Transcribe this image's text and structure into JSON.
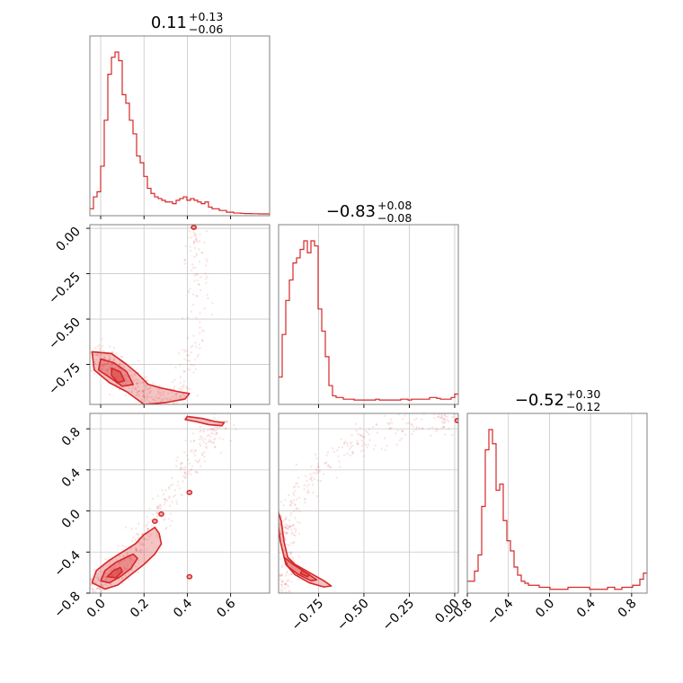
{
  "chart_data": {
    "type": "corner",
    "color": "#d62728",
    "grid": true,
    "titles": [
      {
        "value": "0.11",
        "plus": "+0.13",
        "minus": "−0.06"
      },
      {
        "value": "−0.83",
        "plus": "+0.08",
        "minus": "−0.08"
      },
      {
        "value": "−0.52",
        "plus": "+0.30",
        "minus": "−0.12"
      }
    ],
    "parameters": [
      {
        "range": [
          -0.05,
          0.78
        ],
        "ticks": [
          0.0,
          0.2,
          0.4,
          0.6
        ],
        "tick_labels": [
          "0.0",
          "0.2",
          "0.4",
          "0.6"
        ]
      },
      {
        "range": [
          -0.97,
          0.02
        ],
        "ticks": [
          -0.75,
          -0.5,
          -0.25,
          0.0
        ],
        "tick_labels": [
          "−0.75",
          "−0.50",
          "−0.25",
          "0.00"
        ]
      },
      {
        "range": [
          -0.8,
          0.95
        ],
        "ticks": [
          -0.8,
          -0.4,
          0.0,
          0.4,
          0.8
        ],
        "tick_labels": [
          "−0.8",
          "−0.4",
          "0.0",
          "0.4",
          "0.8"
        ]
      }
    ],
    "histograms": [
      {
        "bin_start": -0.05,
        "bin_width": 0.0166,
        "counts": [
          0.03,
          0.1,
          0.13,
          0.28,
          0.55,
          0.82,
          0.92,
          0.95,
          0.9,
          0.7,
          0.65,
          0.55,
          0.47,
          0.34,
          0.3,
          0.22,
          0.15,
          0.12,
          0.1,
          0.09,
          0.08,
          0.07,
          0.07,
          0.06,
          0.08,
          0.09,
          0.1,
          0.08,
          0.09,
          0.08,
          0.07,
          0.06,
          0.07,
          0.04,
          0.03,
          0.03,
          0.02,
          0.02,
          0.01,
          0.01,
          0.005,
          0.005,
          0.003,
          0.002,
          0.002,
          0.001,
          0.001,
          0.0,
          0.0,
          0.0
        ]
      },
      {
        "bin_start": -0.97,
        "bin_width": 0.0198,
        "counts": [
          0.15,
          0.4,
          0.6,
          0.72,
          0.82,
          0.85,
          0.9,
          0.95,
          0.88,
          0.95,
          0.92,
          0.55,
          0.42,
          0.27,
          0.1,
          0.04,
          0.03,
          0.03,
          0.02,
          0.02,
          0.02,
          0.015,
          0.015,
          0.015,
          0.015,
          0.015,
          0.015,
          0.02,
          0.015,
          0.015,
          0.015,
          0.015,
          0.015,
          0.015,
          0.02,
          0.02,
          0.015,
          0.02,
          0.02,
          0.02,
          0.02,
          0.02,
          0.03,
          0.03,
          0.025,
          0.02,
          0.02,
          0.02,
          0.03,
          0.05
        ]
      },
      {
        "bin_start": -0.8,
        "bin_width": 0.035,
        "counts": [
          0.05,
          0.05,
          0.1,
          0.18,
          0.42,
          0.7,
          0.8,
          0.73,
          0.5,
          0.53,
          0.35,
          0.25,
          0.2,
          0.12,
          0.08,
          0.05,
          0.04,
          0.03,
          0.03,
          0.03,
          0.02,
          0.02,
          0.02,
          0.01,
          0.01,
          0.01,
          0.01,
          0.01,
          0.02,
          0.02,
          0.02,
          0.02,
          0.02,
          0.02,
          0.01,
          0.01,
          0.01,
          0.01,
          0.01,
          0.02,
          0.02,
          0.01,
          0.01,
          0.02,
          0.02,
          0.02,
          0.03,
          0.03,
          0.06,
          0.09
        ]
      }
    ],
    "pairs": [
      {
        "x_param": 0,
        "y_param": 1,
        "scatter_trend": [
          [
            -0.02,
            -0.7
          ],
          [
            0.05,
            -0.74
          ],
          [
            0.12,
            -0.83
          ],
          [
            0.18,
            -0.88
          ],
          [
            0.25,
            -0.93
          ],
          [
            0.32,
            -0.94
          ],
          [
            0.38,
            -0.9
          ],
          [
            0.42,
            -0.7
          ],
          [
            0.45,
            -0.4
          ],
          [
            0.45,
            -0.15
          ],
          [
            0.43,
            0.0
          ]
        ],
        "outer_contour": [
          [
            -0.04,
            -0.68
          ],
          [
            0.05,
            -0.69
          ],
          [
            0.12,
            -0.75
          ],
          [
            0.17,
            -0.8
          ],
          [
            0.22,
            -0.86
          ],
          [
            0.28,
            -0.88
          ],
          [
            0.36,
            -0.9
          ],
          [
            0.41,
            -0.91
          ],
          [
            0.39,
            -0.94
          ],
          [
            0.3,
            -0.96
          ],
          [
            0.2,
            -0.97
          ],
          [
            0.12,
            -0.9
          ],
          [
            0.04,
            -0.85
          ],
          [
            -0.03,
            -0.78
          ]
        ],
        "mid_contour": [
          [
            0.0,
            -0.72
          ],
          [
            0.06,
            -0.74
          ],
          [
            0.12,
            -0.79
          ],
          [
            0.15,
            -0.86
          ],
          [
            0.1,
            -0.87
          ],
          [
            0.04,
            -0.82
          ],
          [
            -0.01,
            -0.78
          ]
        ],
        "inner_contour": [
          [
            0.05,
            -0.77
          ],
          [
            0.09,
            -0.79
          ],
          [
            0.11,
            -0.84
          ],
          [
            0.08,
            -0.85
          ],
          [
            0.05,
            -0.81
          ]
        ],
        "islands": [
          [
            0.43,
            0.005
          ]
        ]
      },
      {
        "x_param": 0,
        "y_param": 2,
        "scatter_trend": [
          [
            -0.03,
            -0.75
          ],
          [
            0.05,
            -0.62
          ],
          [
            0.12,
            -0.45
          ],
          [
            0.18,
            -0.3
          ],
          [
            0.25,
            -0.1
          ],
          [
            0.32,
            0.15
          ],
          [
            0.38,
            0.35
          ],
          [
            0.43,
            0.55
          ],
          [
            0.5,
            0.75
          ],
          [
            0.58,
            0.88
          ]
        ],
        "outer_contour": [
          [
            -0.04,
            -0.7
          ],
          [
            -0.02,
            -0.58
          ],
          [
            0.04,
            -0.48
          ],
          [
            0.1,
            -0.4
          ],
          [
            0.16,
            -0.32
          ],
          [
            0.2,
            -0.23
          ],
          [
            0.25,
            -0.16
          ],
          [
            0.27,
            -0.22
          ],
          [
            0.28,
            -0.32
          ],
          [
            0.25,
            -0.42
          ],
          [
            0.2,
            -0.52
          ],
          [
            0.14,
            -0.62
          ],
          [
            0.08,
            -0.72
          ],
          [
            0.02,
            -0.76
          ]
        ],
        "mid_contour": [
          [
            0.0,
            -0.68
          ],
          [
            0.02,
            -0.58
          ],
          [
            0.07,
            -0.5
          ],
          [
            0.12,
            -0.45
          ],
          [
            0.15,
            -0.42
          ],
          [
            0.17,
            -0.46
          ],
          [
            0.14,
            -0.56
          ],
          [
            0.09,
            -0.64
          ],
          [
            0.04,
            -0.7
          ]
        ],
        "inner_contour": [
          [
            0.03,
            -0.64
          ],
          [
            0.06,
            -0.58
          ],
          [
            0.09,
            -0.55
          ],
          [
            0.1,
            -0.59
          ],
          [
            0.07,
            -0.65
          ]
        ],
        "islands": [
          [
            0.41,
            -0.64
          ],
          [
            0.41,
            0.18
          ],
          [
            0.25,
            -0.1
          ],
          [
            0.28,
            -0.03
          ]
        ],
        "top_contour": [
          [
            0.4,
            0.92
          ],
          [
            0.47,
            0.9
          ],
          [
            0.53,
            0.87
          ],
          [
            0.57,
            0.86
          ],
          [
            0.56,
            0.83
          ],
          [
            0.5,
            0.84
          ],
          [
            0.44,
            0.87
          ],
          [
            0.39,
            0.89
          ]
        ]
      },
      {
        "x_param": 1,
        "y_param": 2,
        "scatter_trend": [
          [
            -0.96,
            -0.8
          ],
          [
            -0.95,
            -0.3
          ],
          [
            -0.9,
            0.0
          ],
          [
            -0.8,
            0.3
          ],
          [
            -0.65,
            0.55
          ],
          [
            -0.5,
            0.72
          ],
          [
            -0.3,
            0.82
          ],
          [
            -0.1,
            0.88
          ],
          [
            0.0,
            0.9
          ]
        ],
        "outer_contour": [
          [
            -0.97,
            -0.02
          ],
          [
            -0.955,
            -0.1
          ],
          [
            -0.94,
            -0.3
          ],
          [
            -0.92,
            -0.45
          ],
          [
            -0.88,
            -0.52
          ],
          [
            -0.8,
            -0.6
          ],
          [
            -0.72,
            -0.68
          ],
          [
            -0.68,
            -0.73
          ],
          [
            -0.72,
            -0.74
          ],
          [
            -0.8,
            -0.7
          ],
          [
            -0.88,
            -0.62
          ],
          [
            -0.93,
            -0.52
          ],
          [
            -0.96,
            -0.3
          ],
          [
            -0.975,
            -0.1
          ]
        ],
        "mid_contour": [
          [
            -0.94,
            -0.45
          ],
          [
            -0.89,
            -0.52
          ],
          [
            -0.82,
            -0.6
          ],
          [
            -0.76,
            -0.67
          ],
          [
            -0.79,
            -0.68
          ],
          [
            -0.86,
            -0.62
          ],
          [
            -0.92,
            -0.54
          ]
        ],
        "inner_contour": [
          [
            -0.84,
            -0.58
          ],
          [
            -0.8,
            -0.62
          ],
          [
            -0.81,
            -0.64
          ],
          [
            -0.85,
            -0.61
          ]
        ],
        "islands": [
          [
            0.015,
            0.88
          ]
        ]
      }
    ]
  }
}
